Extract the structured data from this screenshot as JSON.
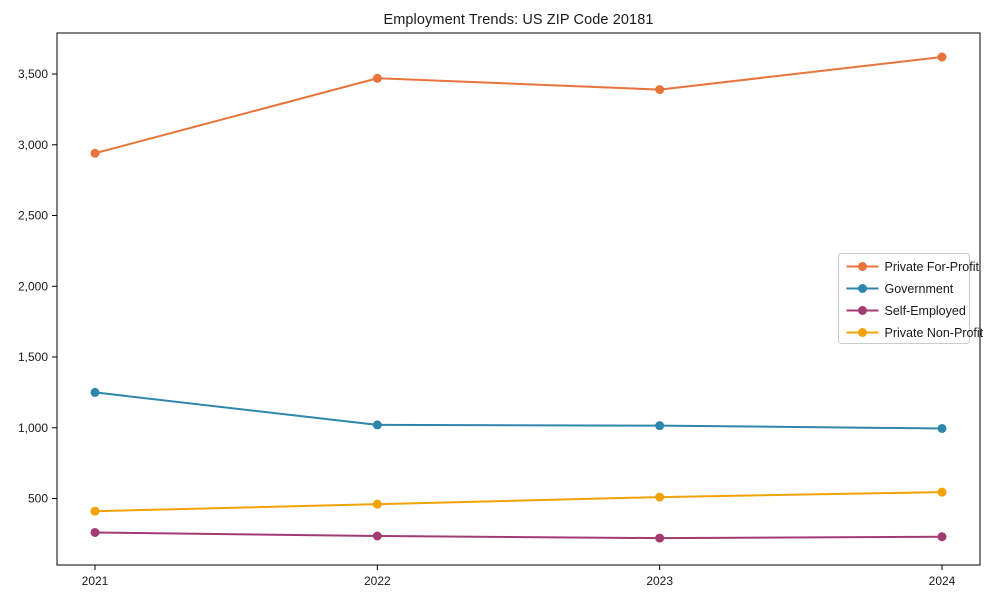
{
  "chart_data": {
    "type": "line",
    "title": "Employment Trends: US ZIP Code 20181",
    "xlabel": "",
    "ylabel": "",
    "x": [
      2021,
      2022,
      2023,
      2024
    ],
    "yticks": [
      500,
      1000,
      1500,
      2000,
      2500,
      3000,
      3500
    ],
    "ylim": [
      30,
      3790
    ],
    "grid": false,
    "legend_position": "center right",
    "series": [
      {
        "name": "Private For-Profit",
        "color": "#E8743B",
        "values": [
          2940,
          3470,
          3390,
          3620
        ]
      },
      {
        "name": "Government",
        "color": "#2E86AB",
        "values": [
          1250,
          1020,
          1015,
          995
        ]
      },
      {
        "name": "Self-Employed",
        "color": "#A23B72",
        "values": [
          260,
          235,
          220,
          230
        ]
      },
      {
        "name": "Private Non-Profit",
        "color": "#F1A208",
        "values": [
          410,
          460,
          510,
          545
        ]
      }
    ]
  }
}
